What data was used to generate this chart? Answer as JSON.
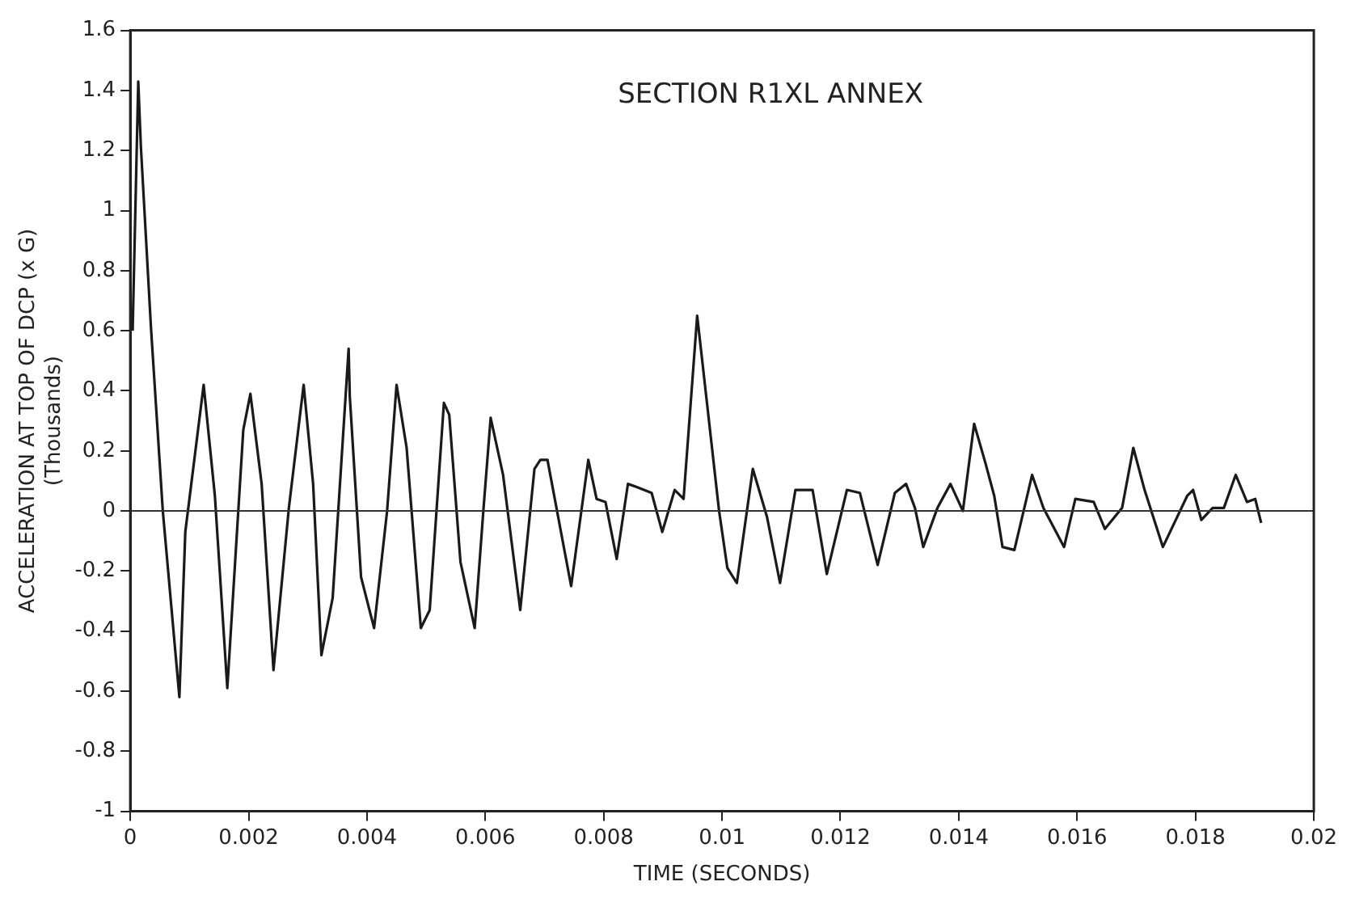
{
  "chart_data": {
    "type": "line",
    "title": "SECTION R1XL ANNEX",
    "xlabel": "TIME (SECONDS)",
    "ylabel": "ACCELERATION AT TOP OF DCP (x G)\n(Thousands)",
    "x": [
      4e-05,
      0.000135,
      0.00018,
      0.00035,
      0.00055,
      0.00083,
      0.00093,
      0.00124,
      0.00143,
      0.00164,
      0.00191,
      0.00203,
      0.00222,
      0.00242,
      0.00268,
      0.00293,
      0.00309,
      0.00323,
      0.00342,
      0.00369,
      0.00371,
      0.0039,
      0.00412,
      0.00434,
      0.0045,
      0.00467,
      0.00491,
      0.00506,
      0.0053,
      0.00539,
      0.00558,
      0.00582,
      0.00597,
      0.00609,
      0.0063,
      0.00659,
      0.00683,
      0.00693,
      0.00705,
      0.00745,
      0.00774,
      0.00788,
      0.00803,
      0.00822,
      0.00841,
      0.00855,
      0.00881,
      0.00899,
      0.0092,
      0.00935,
      0.00958,
      0.00995,
      0.01009,
      0.01025,
      0.01052,
      0.01076,
      0.01098,
      0.01124,
      0.01153,
      0.01177,
      0.01211,
      0.01233,
      0.01263,
      0.01292,
      0.01311,
      0.01326,
      0.0134,
      0.01364,
      0.01386,
      0.01407,
      0.01426,
      0.01445,
      0.0146,
      0.01474,
      0.01494,
      0.01524,
      0.01543,
      0.01578,
      0.01597,
      0.01628,
      0.01647,
      0.01676,
      0.01695,
      0.01714,
      0.01745,
      0.01786,
      0.01796,
      0.0181,
      0.01829,
      0.01848,
      0.01868,
      0.01887,
      0.01901,
      0.01911
    ],
    "values": [
      0.6,
      1.43,
      1.21,
      0.61,
      0,
      -0.62,
      -0.07,
      0.42,
      0.05,
      -0.59,
      0.27,
      0.39,
      0.09,
      -0.53,
      0.01,
      0.42,
      0.09,
      -0.48,
      -0.29,
      0.54,
      0.38,
      -0.22,
      -0.39,
      0,
      0.42,
      0.21,
      -0.39,
      -0.33,
      0.36,
      0.32,
      -0.17,
      -0.39,
      0.01,
      0.31,
      0.12,
      -0.33,
      0.14,
      0.17,
      0.17,
      -0.25,
      0.17,
      0.04,
      0.03,
      -0.16,
      0.09,
      0.08,
      0.06,
      -0.07,
      0.07,
      0.04,
      0.65,
      0,
      -0.19,
      -0.24,
      0.14,
      -0.02,
      -0.24,
      0.07,
      0.07,
      -0.21,
      0.07,
      0.06,
      -0.18,
      0.06,
      0.09,
      0.01,
      -0.12,
      0.01,
      0.09,
      0,
      0.29,
      0.16,
      0.05,
      -0.12,
      -0.13,
      0.12,
      0.01,
      -0.12,
      0.04,
      0.03,
      -0.06,
      0.01,
      0.21,
      0.07,
      -0.12,
      0.05,
      0.07,
      -0.03,
      0.01,
      0.01,
      0.12,
      0.03,
      0.04,
      -0.04
    ],
    "color": "#1a1a1a",
    "marker": "none",
    "line_style": "solid",
    "grid": false,
    "legend": false,
    "xlim": [
      0,
      0.02
    ],
    "xticks": [
      0,
      0.002,
      0.004,
      0.006,
      0.008,
      0.01,
      0.012,
      0.014,
      0.016,
      0.018,
      0.02
    ],
    "ylim": [
      -1,
      1.6
    ],
    "yticks": [
      -1,
      -0.8,
      -0.6,
      -0.4,
      -0.2,
      0,
      0.2,
      0.4,
      0.6,
      0.8,
      1,
      1.2,
      1.4,
      1.6
    ],
    "ref_lines": [
      {
        "axis": "y",
        "value": 0,
        "color": "#333333",
        "line_style": "solid"
      }
    ]
  }
}
